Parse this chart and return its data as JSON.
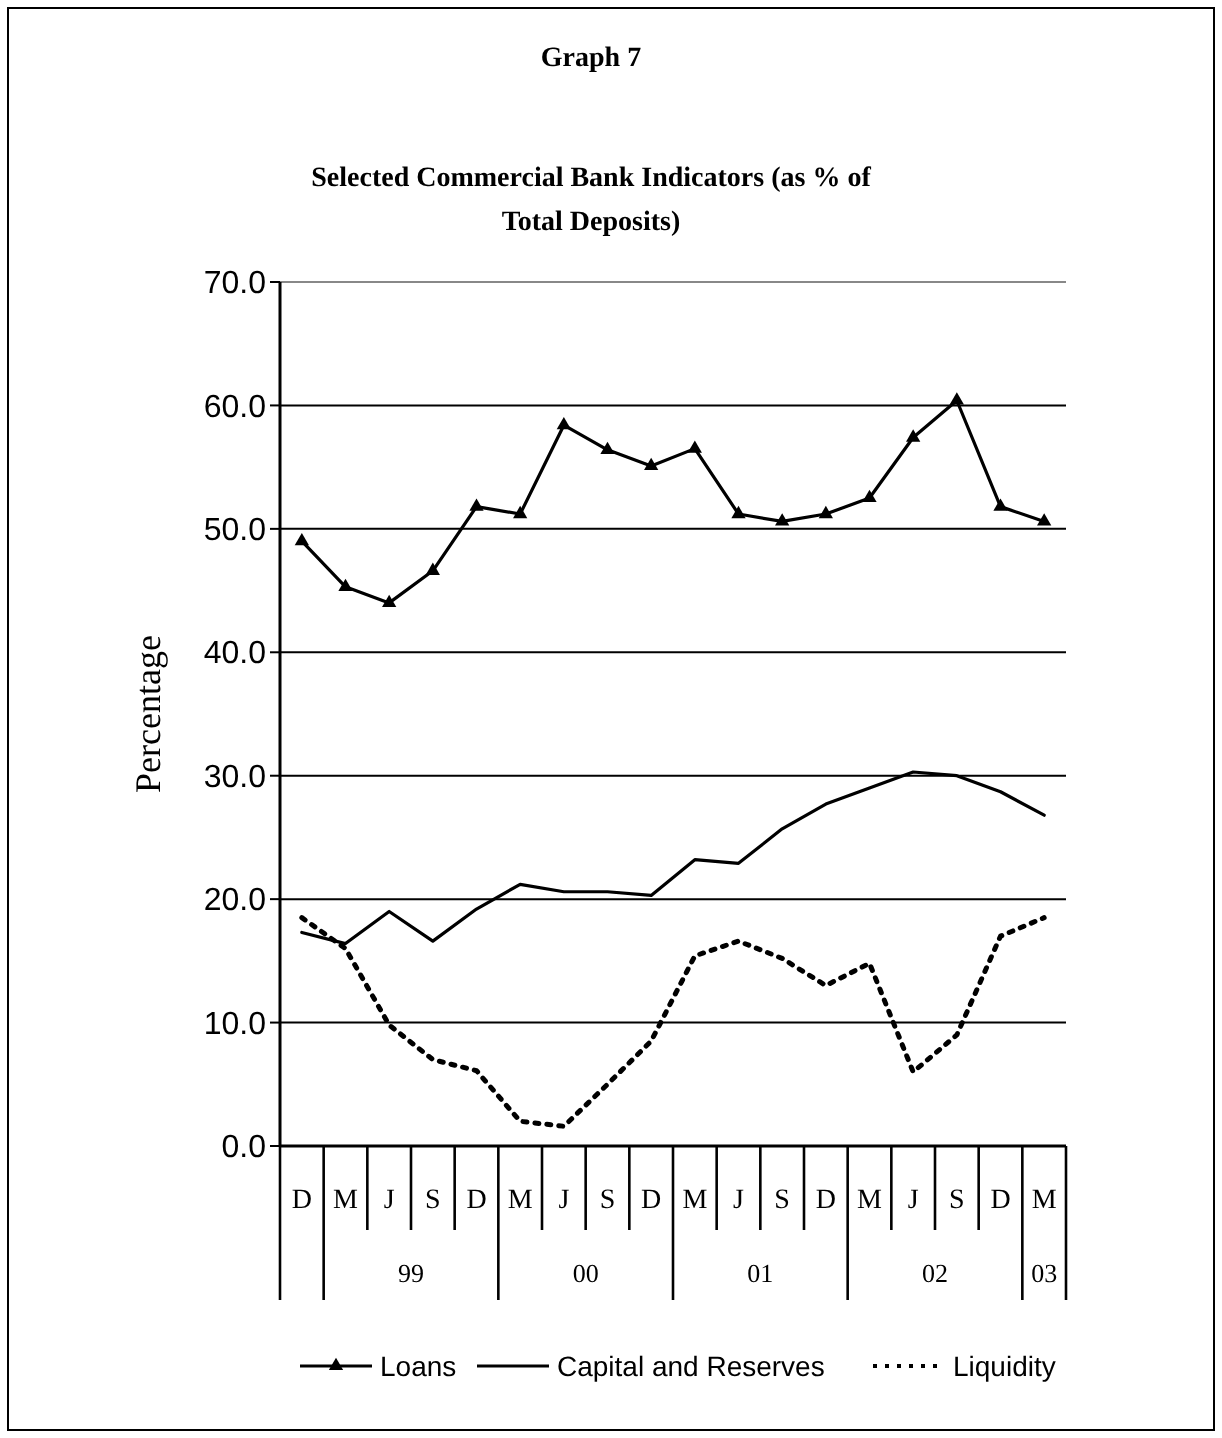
{
  "chart_data": {
    "type": "line",
    "title": "Graph 7",
    "subtitle": "Selected Commercial Bank Indicators (as % of Total Deposits)",
    "ylabel": "Percentage",
    "categories": [
      "D",
      "M",
      "J",
      "S",
      "D",
      "M",
      "J",
      "S",
      "D",
      "M",
      "J",
      "S",
      "D",
      "M",
      "J",
      "S",
      "D",
      "M"
    ],
    "annotations": [
      "99",
      "00",
      "01",
      "02",
      "03"
    ],
    "series": [
      {
        "name": "Loans",
        "color": "#000000",
        "marker": "triangle",
        "line_style": "solid",
        "values": [
          49.0,
          45.3,
          44.0,
          46.6,
          51.8,
          51.2,
          58.4,
          56.4,
          55.1,
          56.5,
          51.2,
          50.6,
          51.2,
          52.5,
          57.4,
          60.4,
          51.8,
          50.6
        ]
      },
      {
        "name": "Capital and Reserves",
        "color": "#000000",
        "marker": "none",
        "line_style": "solid",
        "values": [
          17.3,
          16.4,
          19.0,
          16.6,
          19.2,
          21.2,
          20.6,
          20.6,
          20.3,
          23.2,
          22.9,
          25.7,
          27.7,
          29.0,
          30.3,
          30.0,
          28.7,
          26.8
        ]
      },
      {
        "name": "Liquidity",
        "color": "#000000",
        "marker": "none",
        "line_style": "dotted",
        "values": [
          18.5,
          16.0,
          9.8,
          7.0,
          6.1,
          2.0,
          1.6,
          5.0,
          8.5,
          15.4,
          16.6,
          15.2,
          13.0,
          14.8,
          6.0,
          9.0,
          17.0,
          18.5
        ]
      }
    ],
    "ylim": [
      0,
      70
    ],
    "yticks": [
      {
        "value": 0,
        "label": "0.0"
      },
      {
        "value": 10,
        "label": "10.0"
      },
      {
        "value": 20,
        "label": "20.0"
      },
      {
        "value": 30,
        "label": "30.0"
      },
      {
        "value": 40,
        "label": "40.0"
      },
      {
        "value": 50,
        "label": "50.0"
      },
      {
        "value": 60,
        "label": "60.0"
      },
      {
        "value": 70,
        "label": "70.0"
      }
    ],
    "grid": "y",
    "legend": "bottom"
  }
}
